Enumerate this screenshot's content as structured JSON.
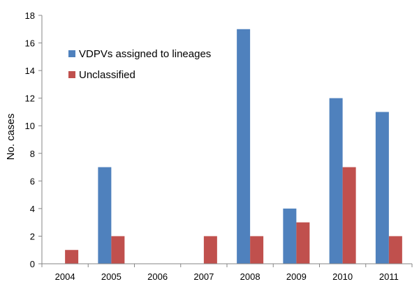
{
  "chart_data": {
    "type": "bar",
    "title": "",
    "xlabel": "",
    "ylabel": "No. cases",
    "ylim": [
      0,
      18
    ],
    "yticks": [
      0,
      2,
      4,
      6,
      8,
      10,
      12,
      14,
      16,
      18
    ],
    "grid": false,
    "legend_position": "top-left",
    "categories": [
      "2004",
      "2005",
      "2006",
      "2007",
      "2008",
      "2009",
      "2010",
      "2011"
    ],
    "series": [
      {
        "name": "VDPVs assigned to lineages",
        "color": "#4F81BD",
        "values": [
          0,
          7,
          0,
          0,
          17,
          4,
          12,
          11
        ]
      },
      {
        "name": "Unclassified",
        "color": "#C0504D",
        "values": [
          1,
          2,
          0,
          2,
          2,
          3,
          7,
          2
        ]
      }
    ]
  }
}
